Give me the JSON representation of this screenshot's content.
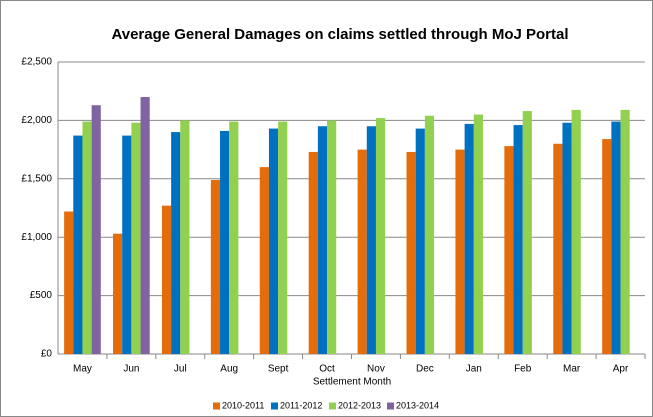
{
  "chart_data": {
    "type": "bar",
    "title": "Average General Damages on claims settled through MoJ Portal",
    "x_label": "Settlement Month",
    "categories": [
      "May",
      "Jun",
      "Jul",
      "Aug",
      "Sept",
      "Oct",
      "Nov",
      "Dec",
      "Jan",
      "Feb",
      "Mar",
      "Apr"
    ],
    "series": [
      {
        "name": "2010-2011",
        "color": "#e46c0a",
        "values": [
          1220,
          1030,
          1270,
          1490,
          1600,
          1730,
          1750,
          1730,
          1750,
          1780,
          1800,
          1840
        ]
      },
      {
        "name": "2011-2012",
        "color": "#0070c0",
        "values": [
          1870,
          1870,
          1900,
          1910,
          1930,
          1950,
          1950,
          1930,
          1970,
          1960,
          1980,
          1990
        ]
      },
      {
        "name": "2012-2013",
        "color": "#92d050",
        "values": [
          1990,
          1980,
          2000,
          1990,
          1990,
          2000,
          2020,
          2040,
          2050,
          2080,
          2090,
          2090
        ]
      },
      {
        "name": "2013-2014",
        "color": "#8064a2",
        "values": [
          2130,
          2200,
          null,
          null,
          null,
          null,
          null,
          null,
          null,
          null,
          null,
          null
        ]
      }
    ],
    "ylim": [
      0,
      2500
    ],
    "yticks": [
      {
        "value": 0,
        "label": "£0"
      },
      {
        "value": 500,
        "label": "£500"
      },
      {
        "value": 1000,
        "label": "£1,000"
      },
      {
        "value": 1500,
        "label": "£1,500"
      },
      {
        "value": 2000,
        "label": "£2,000"
      },
      {
        "value": 2500,
        "label": "£2,500"
      }
    ],
    "grid": true,
    "legend": "bottom"
  }
}
